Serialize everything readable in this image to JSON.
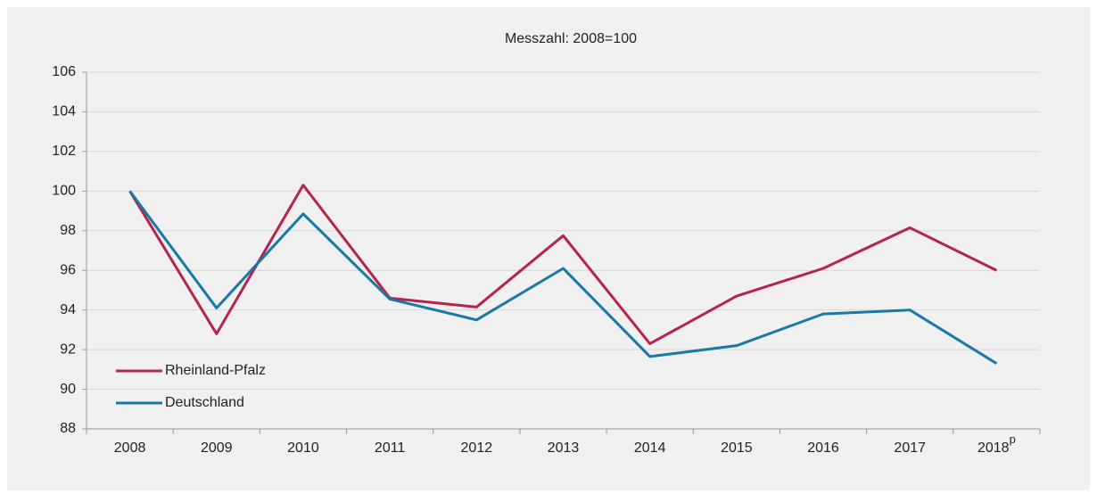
{
  "chart_data": {
    "type": "line",
    "title": "Messzahl: 2008=100",
    "categories": [
      "2008",
      "2009",
      "2010",
      "2011",
      "2012",
      "2013",
      "2014",
      "2015",
      "2016",
      "2017",
      "2018"
    ],
    "last_category_superscript": "p",
    "series": [
      {
        "name": "Rheinland-Pfalz",
        "color": "#b5244a",
        "values": [
          100,
          92.8,
          100.3,
          94.6,
          94.15,
          97.75,
          92.3,
          94.7,
          96.1,
          98.15,
          96.0
        ]
      },
      {
        "name": "Deutschland",
        "color": "#1878a6",
        "values": [
          100,
          94.1,
          98.85,
          94.55,
          93.5,
          96.1,
          91.65,
          92.2,
          93.8,
          94.0,
          91.3
        ]
      }
    ],
    "ylim": [
      88,
      106
    ],
    "yticks": [
      88,
      90,
      92,
      94,
      96,
      98,
      100,
      102,
      104,
      106
    ],
    "grid": true,
    "legend": "lower left"
  }
}
